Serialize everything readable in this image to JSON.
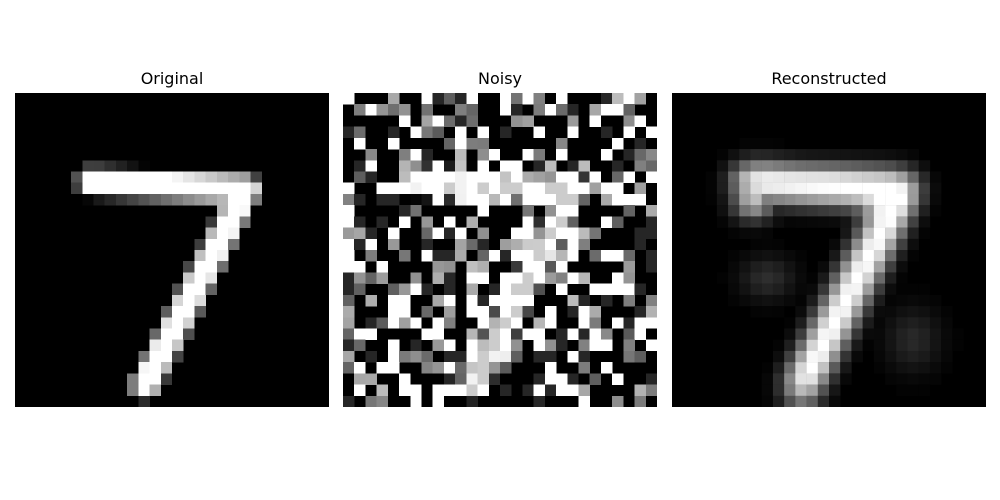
{
  "panels": [
    {
      "key": "original",
      "title": "Original"
    },
    {
      "key": "noisy",
      "title": "Noisy"
    },
    {
      "key": "reconstructed",
      "title": "Reconstructed"
    }
  ],
  "grid_size": 28,
  "colors": {
    "background": "#ffffff",
    "image_background": "#000000"
  }
}
